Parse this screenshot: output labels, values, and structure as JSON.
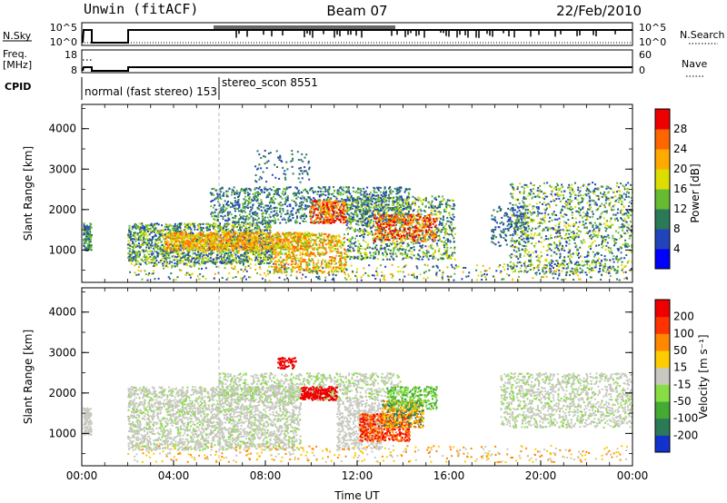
{
  "header": {
    "title": "Unwin (fitACF)",
    "beam": "Beam 07",
    "date": "22/Feb/2010"
  },
  "noise_panel": {
    "left_label": "N.Sky",
    "right_label": "N.Search",
    "left_ticks": [
      "10^5",
      "10^0"
    ],
    "right_ticks": [
      "10^5",
      "10^0"
    ]
  },
  "freq_panel": {
    "left_label_1": "Freq.",
    "left_label_2": "[MHz]",
    "right_label": "Nave",
    "left_ticks": [
      "18",
      "8"
    ],
    "right_ticks": [
      "60",
      "0"
    ]
  },
  "cpid_panel": {
    "label": "CPID",
    "mode_1": "normal (fast stereo) 153",
    "mode_2": "stereo_scon 8551"
  },
  "chart_data": [
    {
      "type": "heatmap",
      "name": "power",
      "ylabel": "Slant Range [km]",
      "y_ticks": [
        "1000",
        "2000",
        "3000",
        "4000"
      ],
      "ylim": [
        200,
        4600
      ],
      "colorbar_label": "Power [dB]",
      "colorbar_ticks": [
        "4",
        "8",
        "12",
        "16",
        "20",
        "24",
        "28"
      ],
      "colorbar_colors": [
        "#0000ff",
        "#2244bb",
        "#2a7a58",
        "#66bb33",
        "#dddd00",
        "#ffaa00",
        "#ff6600",
        "#ee0000"
      ]
    },
    {
      "type": "heatmap",
      "name": "velocity",
      "ylabel": "Slant Range [km]",
      "y_ticks": [
        "1000",
        "2000",
        "3000",
        "4000"
      ],
      "ylim": [
        200,
        4600
      ],
      "colorbar_label": "Velocity [m s⁻¹]",
      "colorbar_ticks": [
        "200",
        "100",
        "50",
        "15",
        "-15",
        "-50",
        "-100",
        "-200"
      ],
      "colorbar_colors": [
        "#1133cc",
        "#2a7a58",
        "#44aa33",
        "#88dd44",
        "#c8c8c0",
        "#ffcc00",
        "#ff8800",
        "#ff3300",
        "#ee0000"
      ]
    }
  ],
  "x_axis": {
    "ticks": [
      "00:00",
      "04:00",
      "08:00",
      "12:00",
      "16:00",
      "20:00",
      "00:00"
    ],
    "label": "Time UT"
  }
}
